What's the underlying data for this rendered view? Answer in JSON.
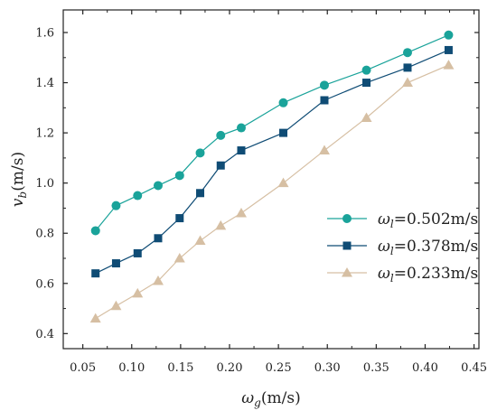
{
  "chart_data": {
    "type": "line",
    "title": "",
    "xlabel": {
      "symbol": "ω",
      "subscript": "g",
      "unit": "(m/s)"
    },
    "ylabel": {
      "symbol": "v",
      "subscript": "b",
      "unit": "(m/s)"
    },
    "xlim": [
      0.03,
      0.455
    ],
    "ylim": [
      0.34,
      1.69
    ],
    "xticks": [
      "0.05",
      "0.10",
      "0.15",
      "0.20",
      "0.25",
      "0.30",
      "0.35",
      "0.40",
      "0.45"
    ],
    "yticks": [
      "0.4",
      "0.6",
      "0.8",
      "1.0",
      "1.2",
      "1.4",
      "1.6"
    ],
    "grid": false,
    "legend_position": "right-middle",
    "series": [
      {
        "name": "ω",
        "name_subscript": "l",
        "name_value": "=0.502m/s",
        "marker": "circle",
        "color": "#1aa39a",
        "x": [
          0.063,
          0.084,
          0.106,
          0.127,
          0.149,
          0.17,
          0.191,
          0.212,
          0.255,
          0.297,
          0.34,
          0.382,
          0.424
        ],
        "values": [
          0.81,
          0.91,
          0.95,
          0.99,
          1.03,
          1.12,
          1.19,
          1.22,
          1.32,
          1.39,
          1.45,
          1.52,
          1.59
        ]
      },
      {
        "name": "ω",
        "name_subscript": "l",
        "name_value": "=0.378m/s",
        "marker": "square",
        "color": "#0f4c75",
        "x": [
          0.063,
          0.084,
          0.106,
          0.127,
          0.149,
          0.17,
          0.191,
          0.212,
          0.255,
          0.297,
          0.34,
          0.382,
          0.424
        ],
        "values": [
          0.64,
          0.68,
          0.72,
          0.78,
          0.86,
          0.96,
          1.07,
          1.13,
          1.2,
          1.33,
          1.4,
          1.46,
          1.53
        ]
      },
      {
        "name": "ω",
        "name_subscript": "l",
        "name_value": "=0.233m/s",
        "marker": "triangle",
        "color": "#d6bfa3",
        "x": [
          0.063,
          0.084,
          0.106,
          0.127,
          0.149,
          0.17,
          0.191,
          0.212,
          0.255,
          0.297,
          0.34,
          0.382,
          0.424
        ],
        "values": [
          0.46,
          0.51,
          0.56,
          0.61,
          0.7,
          0.77,
          0.83,
          0.88,
          1.0,
          1.13,
          1.26,
          1.4,
          1.47
        ]
      }
    ]
  }
}
